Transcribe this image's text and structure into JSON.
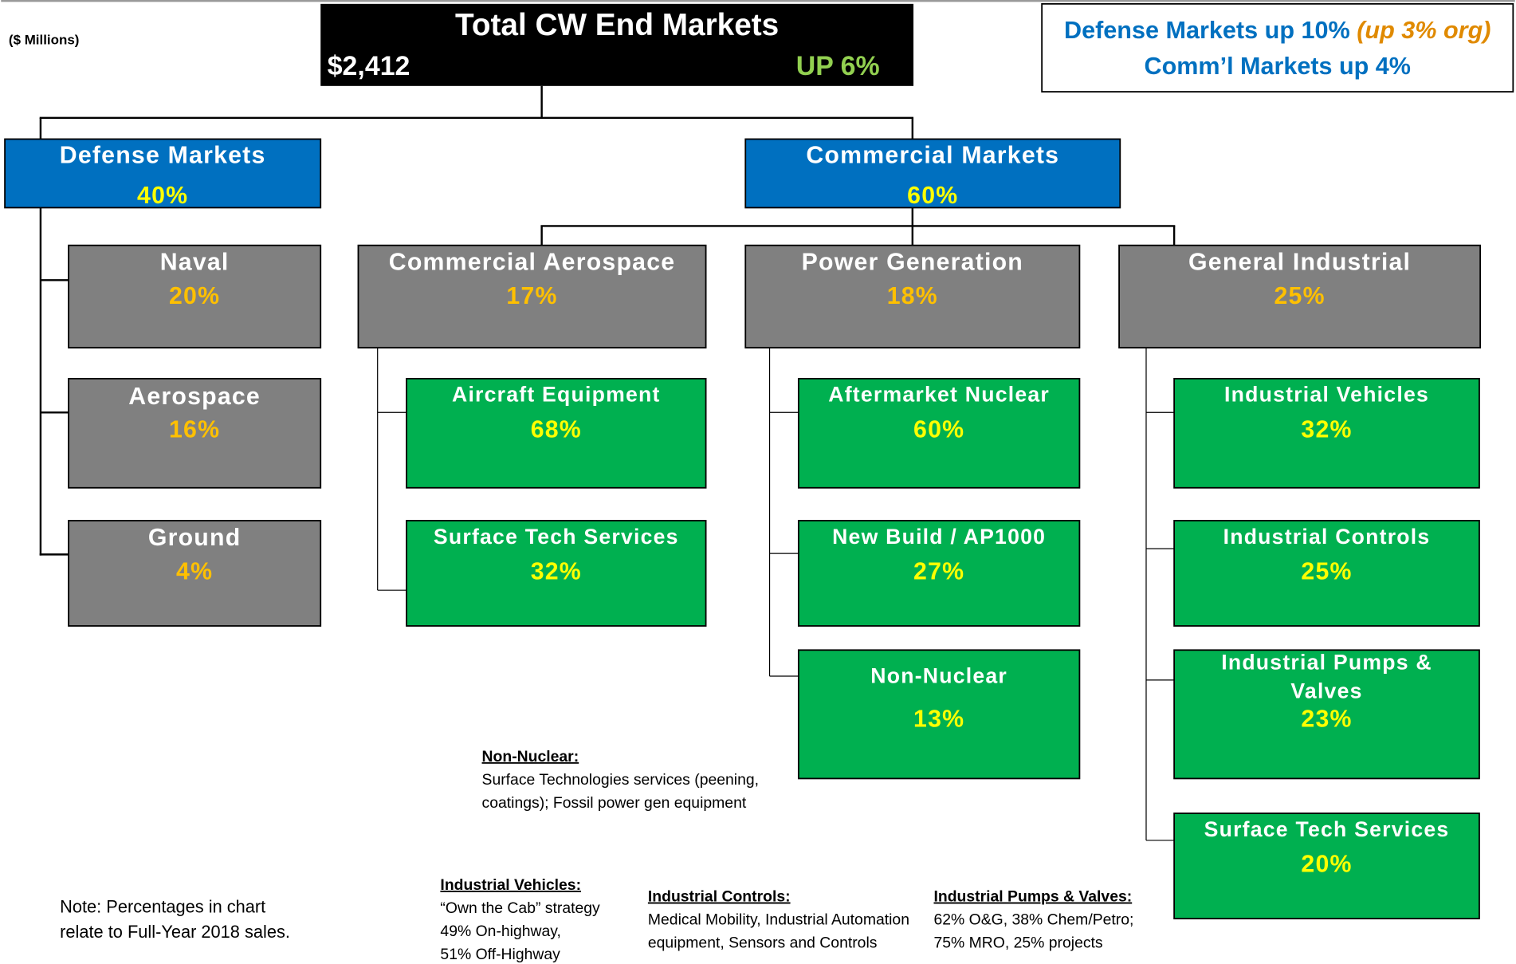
{
  "header": {
    "units": "($ Millions)",
    "title": "Total CW End Markets",
    "total": "$2,412",
    "change": "UP 6%"
  },
  "summary": {
    "defense": "Defense Markets up 10% ",
    "organic": "(up 3% org)",
    "commercial": "Comm’l Markets up 4%"
  },
  "nodes": [
    {
      "label": "Defense Markets",
      "value": "40%"
    },
    {
      "label": "Commercial Markets",
      "value": "60%"
    },
    {
      "label": "Naval",
      "value": "20%"
    },
    {
      "label": "Aerospace",
      "value": "16%"
    },
    {
      "label": "Ground",
      "value": "4%"
    },
    {
      "label": "Commercial Aerospace",
      "value": "17%"
    },
    {
      "label": "Power Generation",
      "value": "18%"
    },
    {
      "label": "General Industrial",
      "value": "25%"
    },
    {
      "label": "Aircraft Equipment",
      "value": "68%"
    },
    {
      "label": "Surface Tech Services",
      "value": "32%"
    },
    {
      "label": "Aftermarket Nuclear",
      "value": "60%"
    },
    {
      "label": "New Build / AP1000",
      "value": "27%"
    },
    {
      "label": "Non-Nuclear",
      "value": "13%"
    },
    {
      "label": "Industrial Vehicles",
      "value": "32%"
    },
    {
      "label": "Industrial Controls",
      "value": "25%"
    },
    {
      "label": [
        "Industrial Pumps &",
        "Valves"
      ],
      "value": "23%"
    },
    {
      "label": "Surface Tech Services",
      "value": "20%"
    }
  ],
  "notes": [
    {
      "title": "Non-Nuclear:",
      "lines": [
        "Surface Technologies services (peening,",
        "coatings); Fossil power gen equipment"
      ]
    },
    {
      "title": "Industrial Vehicles:",
      "lines": [
        "“Own the Cab” strategy",
        "49% On-highway,",
        "51% Off-Highway"
      ]
    },
    {
      "title": "Industrial Controls:",
      "lines": [
        "Medical Mobility, Industrial Automation",
        "equipment, Sensors and Controls"
      ]
    },
    {
      "title": "Industrial Pumps & Valves:",
      "lines": [
        "62% O&G, 38% Chem/Petro;",
        "75% MRO, 25% projects"
      ]
    }
  ],
  "footnote": [
    "Note: Percentages in chart",
    "relate to Full-Year 2018 sales."
  ]
}
